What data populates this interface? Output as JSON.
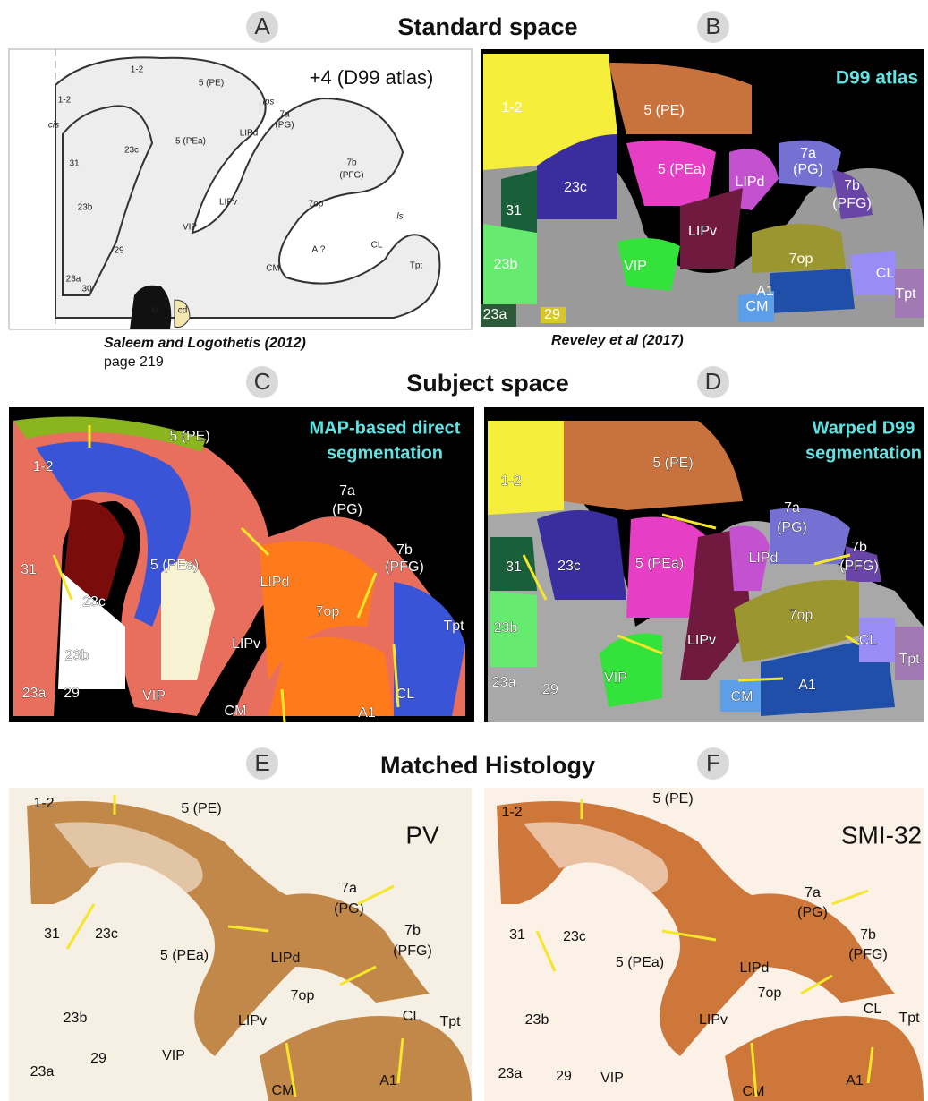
{
  "headers": [
    "Standard space",
    "Subject space",
    "Matched Histology"
  ],
  "panels": [
    {
      "letter": "A",
      "inset": [
        "+4 (D99 atlas)"
      ],
      "caption": [
        "Saleem and Logothetis (2012)",
        "page 219"
      ],
      "labels": [
        "1-2",
        "5 (PE)",
        "1-2",
        "ips",
        "5 (PEa)",
        "7a",
        "(PG)",
        "cis",
        "LIPd",
        "7b",
        "(PFG)",
        "23c",
        "31",
        "LIPv",
        "7op",
        "23b",
        "ls",
        "VIP",
        "CL",
        "29",
        "AI?",
        "CM",
        "Tpt",
        "23a",
        "30",
        "lv",
        "cd"
      ]
    },
    {
      "letter": "B",
      "inset": [
        "D99 atlas"
      ],
      "caption": [
        "Reveley et al (2017)"
      ],
      "labels": [
        "1-2",
        "5 (PE)",
        "7a",
        "(PG)",
        "5 (PEa)",
        "LIPd",
        "7b",
        "(PFG)",
        "23c",
        "31",
        "LIPv",
        "7op",
        "23b",
        "VIP",
        "CL",
        "A1",
        "Tpt",
        "CM",
        "23a",
        "29"
      ]
    },
    {
      "letter": "C",
      "inset": [
        "MAP-based direct",
        "segmentation"
      ],
      "labels": [
        "5 (PE)",
        "1-2",
        "7a",
        "(PG)",
        "7b",
        "(PFG)",
        "5 (PEa)",
        "31",
        "LIPd",
        "23c",
        "7op",
        "Tpt",
        "LIPv",
        "23b",
        "23a",
        "29",
        "VIP",
        "CL",
        "CM",
        "A1"
      ]
    },
    {
      "letter": "D",
      "inset": [
        "Warped D99",
        "segmentation"
      ],
      "labels": [
        "5 (PE)",
        "1-2",
        "7a",
        "(PG)",
        "7b",
        "(PFG)",
        "5 (PEa)",
        "LIPd",
        "31",
        "23c",
        "7op",
        "23b",
        "LIPv",
        "CL",
        "Tpt",
        "VIP",
        "23a",
        "29",
        "A1",
        "CM"
      ]
    },
    {
      "letter": "E",
      "inset": [
        "PV"
      ],
      "labels": [
        "1-2",
        "5 (PE)",
        "7a",
        "(PG)",
        "31",
        "23c",
        "7b",
        "(PFG)",
        "5 (PEa)",
        "LIPd",
        "7op",
        "23b",
        "LIPv",
        "CL",
        "Tpt",
        "VIP",
        "23a",
        "29",
        "A1",
        "CM"
      ]
    },
    {
      "letter": "F",
      "inset": [
        "SMI-32"
      ],
      "labels": [
        "1-2",
        "5 (PE)",
        "7a",
        "(PG)",
        "31",
        "23c",
        "7b",
        "(PFG)",
        "5 (PEa)",
        "LIPd",
        "7op",
        "23b",
        "LIPv",
        "CL",
        "Tpt",
        "VIP",
        "23a",
        "29",
        "A1",
        "CM"
      ]
    }
  ]
}
